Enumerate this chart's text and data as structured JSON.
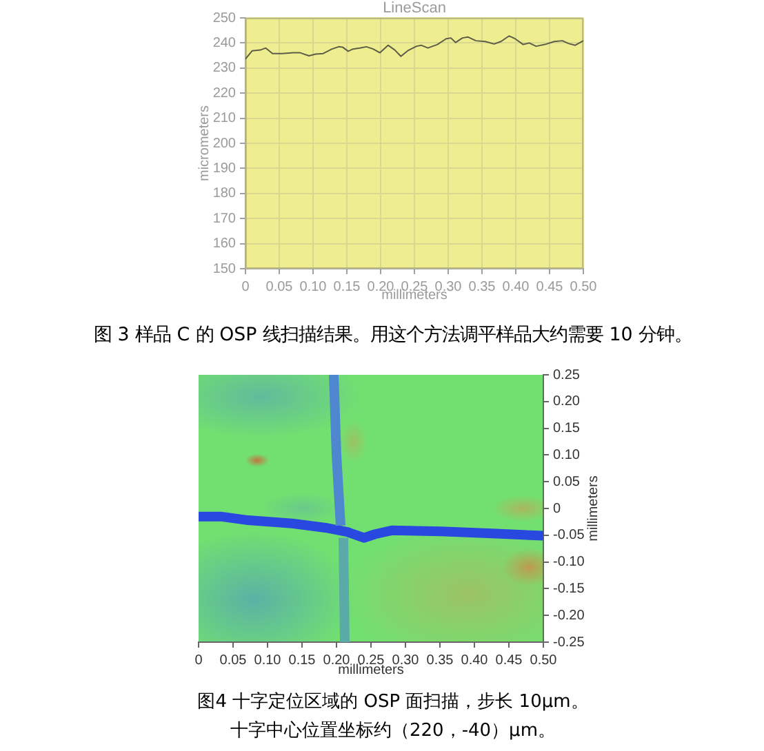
{
  "chart_data": [
    {
      "type": "line",
      "title": "LineScan",
      "xlabel": "millimeters",
      "ylabel": "micrometers",
      "x": [
        0,
        0.01,
        0.022,
        0.03,
        0.04,
        0.054,
        0.071,
        0.081,
        0.094,
        0.104,
        0.115,
        0.128,
        0.138,
        0.144,
        0.152,
        0.159,
        0.169,
        0.179,
        0.189,
        0.199,
        0.211,
        0.221,
        0.23,
        0.24,
        0.253,
        0.26,
        0.27,
        0.284,
        0.297,
        0.304,
        0.311,
        0.321,
        0.329,
        0.341,
        0.355,
        0.368,
        0.378,
        0.39,
        0.399,
        0.411,
        0.42,
        0.43,
        0.443,
        0.457,
        0.469,
        0.478,
        0.488,
        0.5
      ],
      "values": [
        233.6,
        236.9,
        237.2,
        238.0,
        235.8,
        235.8,
        236.1,
        236.1,
        234.9,
        235.6,
        235.8,
        237.6,
        238.5,
        238.3,
        236.7,
        237.6,
        238.0,
        238.5,
        237.6,
        236.1,
        239.1,
        237.2,
        234.7,
        236.9,
        238.7,
        239.1,
        238.0,
        239.4,
        241.7,
        242.0,
        240.2,
        242.0,
        242.4,
        240.9,
        240.6,
        239.6,
        240.6,
        242.8,
        241.7,
        239.4,
        240.0,
        238.7,
        239.4,
        240.6,
        240.9,
        239.8,
        239.1,
        240.9
      ],
      "color": "#5c5c48",
      "xlim": [
        0,
        0.5
      ],
      "ylim": [
        150,
        250
      ],
      "xticks": [
        0,
        0.05,
        {
          "value": 0.1,
          "label": "0.10"
        },
        0.15,
        {
          "value": 0.2,
          "label": "0.20"
        },
        0.25,
        {
          "value": 0.3,
          "label": "0.30"
        },
        0.35,
        {
          "value": 0.4,
          "label": "0.40"
        },
        0.45,
        {
          "value": 0.5,
          "label": "0.50"
        }
      ],
      "yticks": [
        150,
        160,
        170,
        180,
        190,
        200,
        210,
        220,
        230,
        240,
        250
      ],
      "grid": true,
      "annotations": [
        "图 3 样品 C 的 OSP 线扫描结果。用这个方法调平样品大约需要 10 分钟。"
      ]
    },
    {
      "type": "line",
      "xlabel": "millimeters",
      "ylabel": "millimeters",
      "xlim": [
        0,
        0.5
      ],
      "ylim": [
        -0.25,
        0.25
      ],
      "series": [
        {
          "color": "#4f86d0",
          "x": [
            0.196,
            0.2,
            0.206
          ],
          "values": [
            0.25,
            0.1,
            -0.032
          ]
        },
        {
          "color": "#5aaaa8",
          "x": [
            0.21,
            0.212
          ],
          "values": [
            -0.055,
            -0.25
          ]
        },
        {
          "color": "#2848e0",
          "x": [
            0,
            0.032,
            0.072,
            0.136,
            0.184,
            0.216,
            0.24,
            0.256,
            0.28,
            0.352,
            0.432,
            0.5
          ],
          "values": [
            -0.015,
            -0.015,
            -0.022,
            -0.028,
            -0.036,
            -0.044,
            -0.055,
            -0.048,
            -0.041,
            -0.043,
            -0.047,
            -0.051
          ]
        }
      ],
      "xticks": [
        0,
        0.05,
        {
          "value": 0.1,
          "label": "0.10"
        },
        0.15,
        {
          "value": 0.2,
          "label": "0.20"
        },
        0.25,
        {
          "value": 0.3,
          "label": "0.30"
        },
        0.35,
        {
          "value": 0.4,
          "label": "0.40"
        },
        0.45,
        {
          "value": 0.5,
          "label": "0.50"
        }
      ],
      "yticks": [
        0.25,
        {
          "value": 0.2,
          "label": "0.20"
        },
        0.15,
        {
          "value": 0.1,
          "label": "0.10"
        },
        0.05,
        0,
        -0.05,
        {
          "value": -0.1,
          "label": "-0.10"
        },
        -0.15,
        {
          "value": -0.2,
          "label": "-0.20"
        },
        -0.25
      ],
      "annotations": [
        "图4 十字定位区域的 OSP 面扫描，步长 10μm。",
        "十字中心位置坐标约（220，-40）μm。"
      ]
    }
  ]
}
